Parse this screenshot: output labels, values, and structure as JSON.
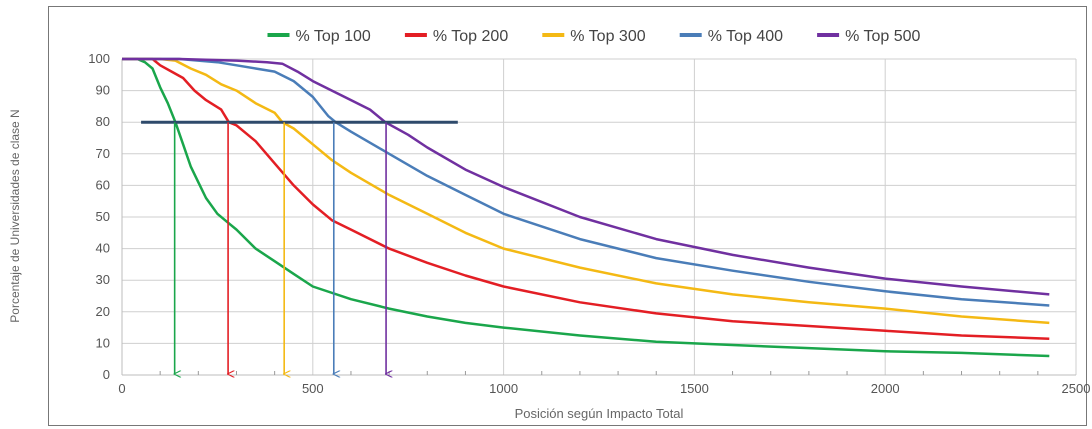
{
  "chart_data": {
    "type": "line",
    "title": "",
    "xlabel": "Posición según Impacto Total",
    "ylabel": "Porcentaje de Universidades de clase N",
    "xlim": [
      0,
      2500
    ],
    "ylim": [
      0,
      100
    ],
    "x_ticks": [
      "0",
      "500",
      "1000",
      "1500",
      "2000",
      "2500"
    ],
    "y_ticks": [
      "0",
      "10",
      "20",
      "30",
      "40",
      "50",
      "60",
      "70",
      "80",
      "90",
      "100"
    ],
    "grid": true,
    "legend_position": "top-center",
    "series": [
      {
        "name": "% Top 100",
        "color": "#1aa64b",
        "points": [
          [
            0,
            100
          ],
          [
            40,
            100
          ],
          [
            60,
            99
          ],
          [
            80,
            97
          ],
          [
            100,
            91
          ],
          [
            120,
            86
          ],
          [
            140,
            80
          ],
          [
            160,
            73
          ],
          [
            180,
            66
          ],
          [
            200,
            61
          ],
          [
            220,
            56
          ],
          [
            250,
            51
          ],
          [
            280,
            48
          ],
          [
            300,
            46
          ],
          [
            350,
            40
          ],
          [
            400,
            36
          ],
          [
            450,
            32
          ],
          [
            500,
            28
          ],
          [
            600,
            24
          ],
          [
            700,
            21
          ],
          [
            800,
            18.5
          ],
          [
            900,
            16.5
          ],
          [
            1000,
            15
          ],
          [
            1200,
            12.5
          ],
          [
            1400,
            10.5
          ],
          [
            1600,
            9.5
          ],
          [
            1800,
            8.5
          ],
          [
            2000,
            7.5
          ],
          [
            2200,
            7
          ],
          [
            2430,
            6
          ]
        ]
      },
      {
        "name": "% Top 200",
        "color": "#e31e24",
        "points": [
          [
            0,
            100
          ],
          [
            40,
            100
          ],
          [
            80,
            100
          ],
          [
            100,
            98
          ],
          [
            130,
            96
          ],
          [
            160,
            94
          ],
          [
            190,
            90
          ],
          [
            220,
            87
          ],
          [
            260,
            84
          ],
          [
            280,
            80
          ],
          [
            300,
            79
          ],
          [
            350,
            74
          ],
          [
            400,
            67
          ],
          [
            450,
            60
          ],
          [
            500,
            54
          ],
          [
            550,
            49
          ],
          [
            600,
            46
          ],
          [
            700,
            40
          ],
          [
            800,
            35.5
          ],
          [
            900,
            31.5
          ],
          [
            1000,
            28
          ],
          [
            1200,
            23
          ],
          [
            1400,
            19.5
          ],
          [
            1600,
            17
          ],
          [
            1800,
            15.5
          ],
          [
            2000,
            14
          ],
          [
            2200,
            12.5
          ],
          [
            2430,
            11.5
          ]
        ]
      },
      {
        "name": "% Top 300",
        "color": "#f4b914",
        "points": [
          [
            0,
            100
          ],
          [
            100,
            100
          ],
          [
            140,
            99.5
          ],
          [
            180,
            97
          ],
          [
            220,
            95
          ],
          [
            260,
            92
          ],
          [
            300,
            90
          ],
          [
            350,
            86
          ],
          [
            400,
            83
          ],
          [
            420,
            80
          ],
          [
            450,
            78
          ],
          [
            500,
            73
          ],
          [
            550,
            68
          ],
          [
            600,
            64
          ],
          [
            700,
            57
          ],
          [
            800,
            51
          ],
          [
            900,
            45
          ],
          [
            1000,
            40
          ],
          [
            1200,
            34
          ],
          [
            1400,
            29
          ],
          [
            1600,
            25.5
          ],
          [
            1800,
            23
          ],
          [
            2000,
            21
          ],
          [
            2200,
            18.5
          ],
          [
            2430,
            16.5
          ]
        ]
      },
      {
        "name": "% Top 400",
        "color": "#4a7db8",
        "points": [
          [
            0,
            100
          ],
          [
            150,
            100
          ],
          [
            250,
            99
          ],
          [
            300,
            98
          ],
          [
            350,
            97
          ],
          [
            400,
            96
          ],
          [
            450,
            93
          ],
          [
            500,
            88
          ],
          [
            540,
            82
          ],
          [
            560,
            80
          ],
          [
            600,
            77
          ],
          [
            700,
            70
          ],
          [
            800,
            63
          ],
          [
            900,
            57
          ],
          [
            1000,
            51
          ],
          [
            1200,
            43
          ],
          [
            1400,
            37
          ],
          [
            1600,
            33
          ],
          [
            1800,
            29.5
          ],
          [
            2000,
            26.5
          ],
          [
            2200,
            24
          ],
          [
            2430,
            22
          ]
        ]
      },
      {
        "name": "% Top 500",
        "color": "#7030a0",
        "points": [
          [
            0,
            100
          ],
          [
            150,
            100
          ],
          [
            300,
            99.5
          ],
          [
            380,
            99
          ],
          [
            420,
            98.5
          ],
          [
            460,
            96
          ],
          [
            500,
            93
          ],
          [
            550,
            90
          ],
          [
            600,
            87
          ],
          [
            650,
            84
          ],
          [
            690,
            80
          ],
          [
            750,
            76
          ],
          [
            800,
            72
          ],
          [
            900,
            65
          ],
          [
            1000,
            59.5
          ],
          [
            1200,
            50
          ],
          [
            1400,
            43
          ],
          [
            1600,
            38
          ],
          [
            1800,
            34
          ],
          [
            2000,
            30.5
          ],
          [
            2200,
            28
          ],
          [
            2430,
            25.5
          ]
        ]
      }
    ],
    "threshold_line": {
      "y": 80,
      "x_start": 50,
      "x_end": 880,
      "color": "#2e4a6b"
    },
    "arrows": [
      {
        "series": "% Top 100",
        "x": 138,
        "color": "#1aa64b"
      },
      {
        "series": "% Top 200",
        "x": 278,
        "color": "#e31e24"
      },
      {
        "series": "% Top 300",
        "x": 425,
        "color": "#f4b914"
      },
      {
        "series": "% Top 400",
        "x": 555,
        "color": "#4a7db8"
      },
      {
        "series": "% Top 500",
        "x": 692,
        "color": "#7030a0"
      }
    ]
  }
}
